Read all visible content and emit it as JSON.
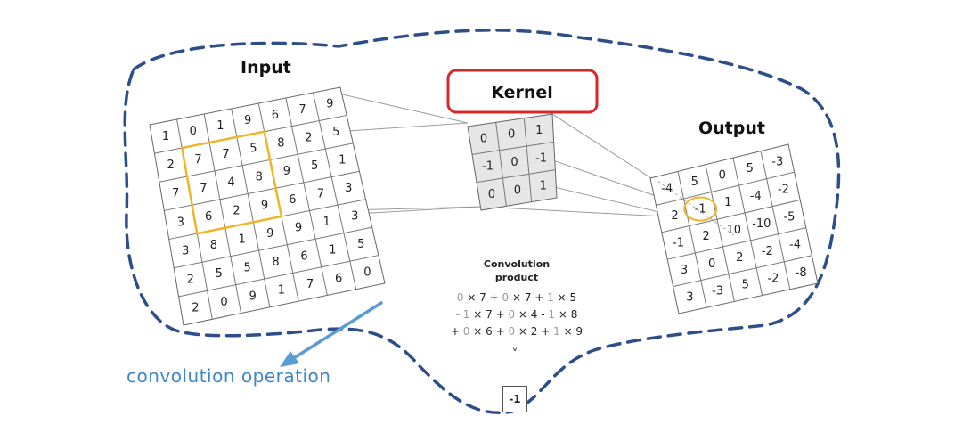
{
  "input": {
    "title": "Input",
    "grid": [
      [
        "1",
        "0",
        "1",
        "9",
        "6",
        "7",
        "9"
      ],
      [
        "2",
        "7",
        "7",
        "5",
        "8",
        "2",
        "5"
      ],
      [
        "7",
        "7",
        "4",
        "8",
        "9",
        "5",
        "1"
      ],
      [
        "3",
        "6",
        "2",
        "9",
        "6",
        "7",
        "3"
      ],
      [
        "3",
        "8",
        "1",
        "9",
        "9",
        "1",
        "3"
      ],
      [
        "2",
        "5",
        "5",
        "8",
        "6",
        "1",
        "5"
      ],
      [
        "2",
        "0",
        "9",
        "1",
        "7",
        "6",
        "0"
      ]
    ]
  },
  "kernel": {
    "title": "Kernel",
    "grid": [
      [
        "0",
        "0",
        "1"
      ],
      [
        "-1",
        "0",
        "-1"
      ],
      [
        "0",
        "0",
        "1"
      ]
    ]
  },
  "output": {
    "title": "Output",
    "grid": [
      [
        "-4",
        "5",
        "0",
        "5",
        "-3"
      ],
      [
        "-2",
        "-1",
        "1",
        "-4",
        "-2"
      ],
      [
        "-1",
        "2",
        "10",
        "-10",
        "-5"
      ],
      [
        "3",
        "0",
        "2",
        "-2",
        "-4"
      ],
      [
        "3",
        "-3",
        "5",
        "-2",
        "-8"
      ]
    ]
  },
  "convolution": {
    "title_line1": "Convolution",
    "title_line2": "product",
    "lines": [
      [
        [
          "0",
          "f"
        ],
        [
          " × 7 + ",
          "n"
        ],
        [
          "0",
          "f"
        ],
        [
          " × 7 + ",
          "n"
        ],
        [
          "1",
          "f"
        ],
        [
          " × 5",
          "n"
        ]
      ],
      [
        [
          "- 1",
          "f"
        ],
        [
          " × 7 + ",
          "n"
        ],
        [
          "0",
          "f"
        ],
        [
          " × 4 - ",
          "n"
        ],
        [
          "1",
          "f"
        ],
        [
          " × 8",
          "n"
        ]
      ],
      [
        [
          "+ ",
          "n"
        ],
        [
          "0",
          "f"
        ],
        [
          " × 6 + ",
          "n"
        ],
        [
          "0",
          "f"
        ],
        [
          " × 2 + ",
          "n"
        ],
        [
          "1",
          "f"
        ],
        [
          " × 9",
          "n"
        ]
      ]
    ],
    "arrow": "˅",
    "result": "-1"
  },
  "annotation": {
    "label": "convolution operation"
  },
  "colors": {
    "dashed_outline": "#2c4f8a",
    "highlight": "#f0b429",
    "kernel_box": "#d62828",
    "arrow": "#5b9bd5",
    "label": "#3f86c8"
  }
}
